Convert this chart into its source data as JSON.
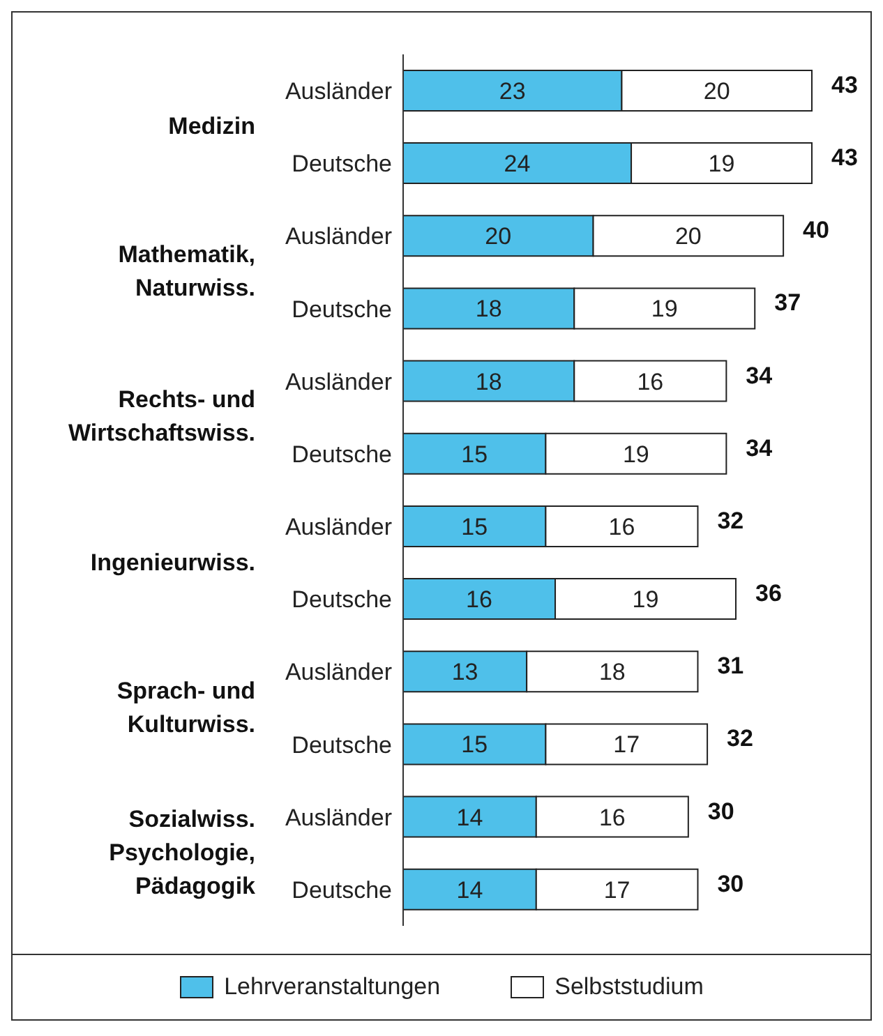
{
  "chart_data": {
    "type": "bar",
    "orientation": "horizontal",
    "stacked": true,
    "categories": [
      "Ausländer",
      "Deutsche",
      "Ausländer",
      "Deutsche",
      "Ausländer",
      "Deutsche",
      "Ausländer",
      "Deutsche",
      "Ausländer",
      "Deutsche",
      "Ausländer",
      "Deutsche"
    ],
    "series": [
      {
        "name": "Lehrveranstaltungen",
        "color": "#4fc0ea",
        "values": [
          23,
          24,
          20,
          18,
          18,
          15,
          15,
          16,
          13,
          15,
          14,
          14
        ]
      },
      {
        "name": "Selbststudium",
        "color": "#ffffff",
        "values": [
          20,
          19,
          20,
          19,
          16,
          19,
          16,
          19,
          18,
          17,
          16,
          17
        ]
      }
    ],
    "data_labels": true,
    "totals": [
      "43",
      "43",
      "40",
      "37",
      "34",
      "34",
      "32",
      "36",
      "31",
      "32",
      "30",
      "30"
    ],
    "annotations": [
      "Medizin",
      "Mathematik, Naturwiss.",
      "Rechts- und Wirtschaftswiss.",
      "Ingenieurwiss.",
      "Sprach- und Kulturwiss.",
      "Sozialwiss. Psychologie, Pädagogik"
    ],
    "legend": "bottom",
    "grid": false
  }
}
